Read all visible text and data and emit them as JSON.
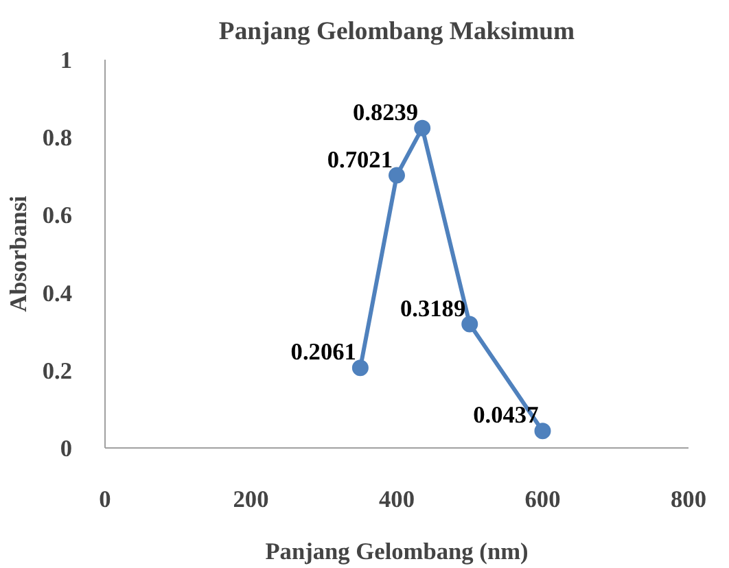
{
  "chart_data": {
    "type": "line",
    "title": "Panjang Gelombang Maksimum",
    "xlabel": "Panjang Gelombang (nm)",
    "ylabel": "Absorbansi",
    "x": [
      350,
      400,
      435,
      500,
      600
    ],
    "series": [
      {
        "color": "#4f81bd",
        "values": [
          0.2061,
          0.7021,
          0.8239,
          0.3189,
          0.0437
        ]
      }
    ],
    "xlim": [
      0,
      800
    ],
    "xticks": [
      0,
      200,
      400,
      600,
      800
    ],
    "ylim": [
      0,
      1
    ],
    "yticks": [
      0,
      0.2,
      0.4,
      0.6,
      0.8,
      1
    ],
    "data_labels": true,
    "marker": "circle",
    "grid": false
  }
}
